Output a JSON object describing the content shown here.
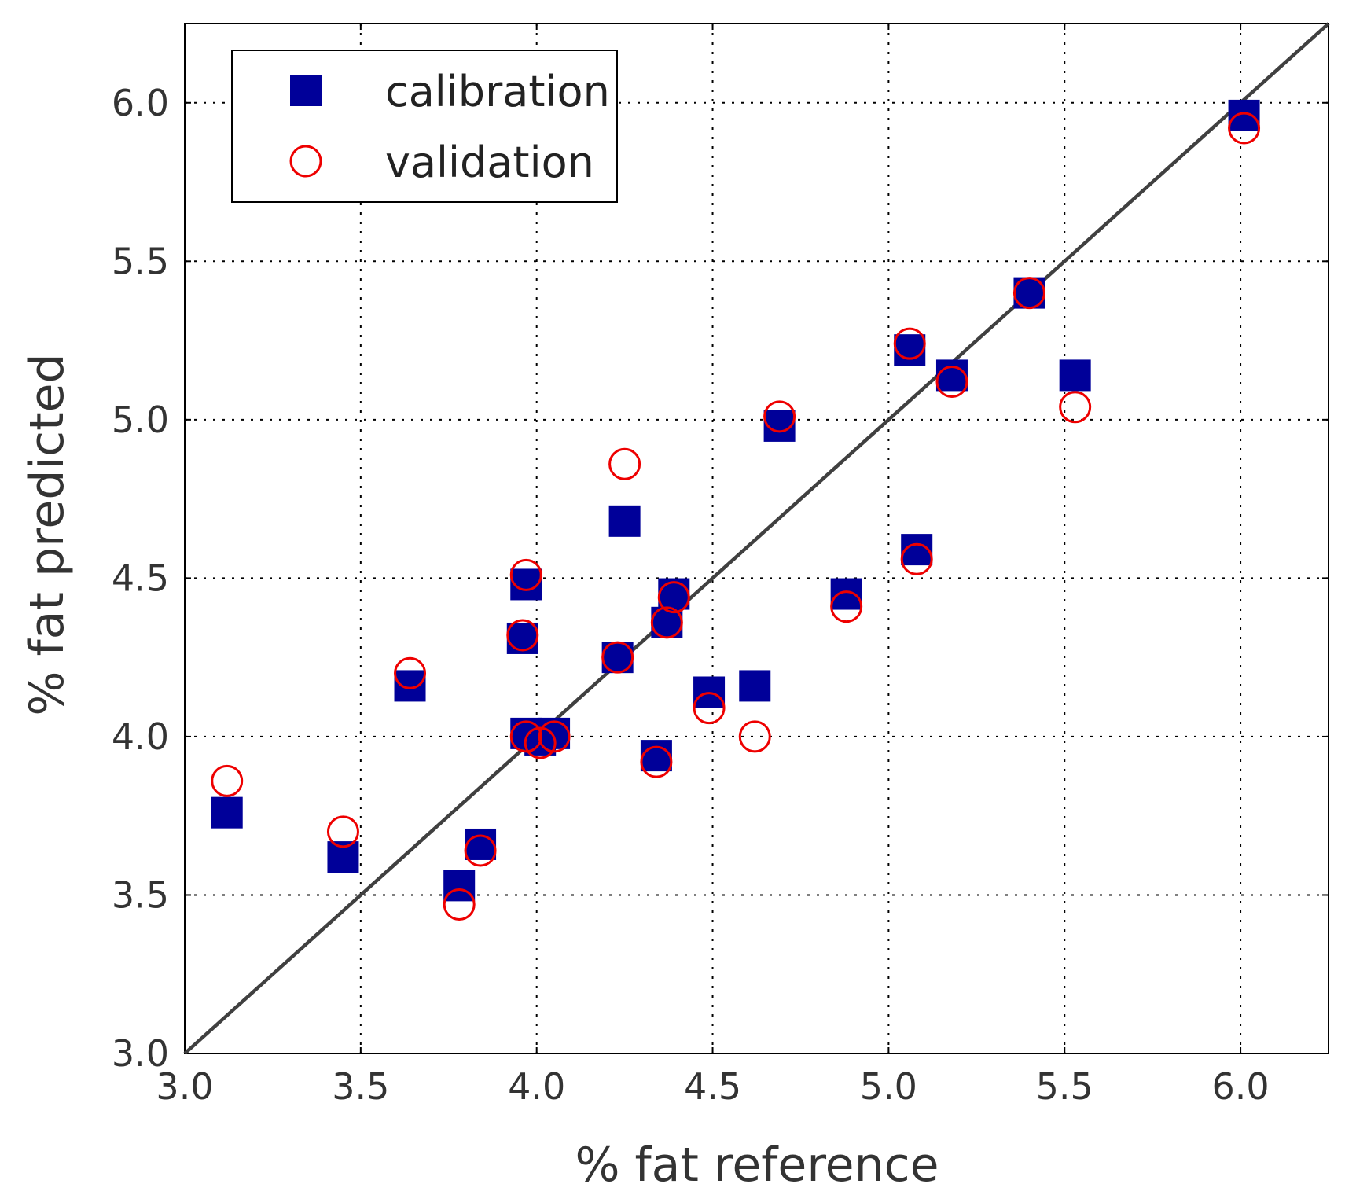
{
  "chart_data": {
    "type": "scatter",
    "xlabel": "% fat reference",
    "ylabel": "% fat predicted",
    "xlim": [
      3.0,
      6.25
    ],
    "ylim": [
      3.0,
      6.25
    ],
    "x_ticks": [
      "3.0",
      "3.5",
      "4.0",
      "4.5",
      "5.0",
      "5.5",
      "6.0"
    ],
    "y_ticks": [
      "3.0",
      "3.5",
      "4.0",
      "4.5",
      "5.0",
      "5.5",
      "6.0"
    ],
    "x_tick_values": [
      3.0,
      3.5,
      4.0,
      4.5,
      5.0,
      5.5,
      6.0
    ],
    "y_tick_values": [
      3.0,
      3.5,
      4.0,
      4.5,
      5.0,
      5.5,
      6.0
    ],
    "grid": true,
    "legend_position": "top-left",
    "reference_line": {
      "from": [
        3.0,
        3.0
      ],
      "to": [
        6.25,
        6.25
      ],
      "color": "#404040"
    },
    "series": [
      {
        "name": "calibration",
        "marker": "filled-square",
        "color": "#000099",
        "points": [
          [
            3.12,
            3.76
          ],
          [
            3.45,
            3.62
          ],
          [
            3.64,
            4.16
          ],
          [
            3.78,
            3.53
          ],
          [
            3.84,
            3.66
          ],
          [
            3.96,
            4.31
          ],
          [
            3.97,
            4.48
          ],
          [
            3.97,
            4.01
          ],
          [
            4.01,
            3.99
          ],
          [
            4.05,
            4.01
          ],
          [
            4.23,
            4.25
          ],
          [
            4.25,
            4.68
          ],
          [
            4.34,
            3.94
          ],
          [
            4.37,
            4.36
          ],
          [
            4.39,
            4.45
          ],
          [
            4.49,
            4.14
          ],
          [
            4.62,
            4.16
          ],
          [
            4.69,
            4.98
          ],
          [
            4.88,
            4.45
          ],
          [
            5.06,
            5.22
          ],
          [
            5.08,
            4.59
          ],
          [
            5.18,
            5.14
          ],
          [
            5.4,
            5.4
          ],
          [
            5.53,
            5.14
          ],
          [
            6.01,
            5.96
          ]
        ]
      },
      {
        "name": "validation",
        "marker": "open-circle",
        "color": "#ee0000",
        "points": [
          [
            3.12,
            3.86
          ],
          [
            3.45,
            3.7
          ],
          [
            3.64,
            4.2
          ],
          [
            3.78,
            3.47
          ],
          [
            3.84,
            3.64
          ],
          [
            3.96,
            4.32
          ],
          [
            3.97,
            4.51
          ],
          [
            3.97,
            4.0
          ],
          [
            4.01,
            3.98
          ],
          [
            4.05,
            4.0
          ],
          [
            4.23,
            4.25
          ],
          [
            4.25,
            4.86
          ],
          [
            4.34,
            3.92
          ],
          [
            4.37,
            4.36
          ],
          [
            4.39,
            4.44
          ],
          [
            4.49,
            4.09
          ],
          [
            4.62,
            4.0
          ],
          [
            4.69,
            5.01
          ],
          [
            4.88,
            4.41
          ],
          [
            5.06,
            5.24
          ],
          [
            5.08,
            4.56
          ],
          [
            5.18,
            5.12
          ],
          [
            5.4,
            5.4
          ],
          [
            5.53,
            5.04
          ],
          [
            6.01,
            5.92
          ]
        ]
      }
    ]
  }
}
